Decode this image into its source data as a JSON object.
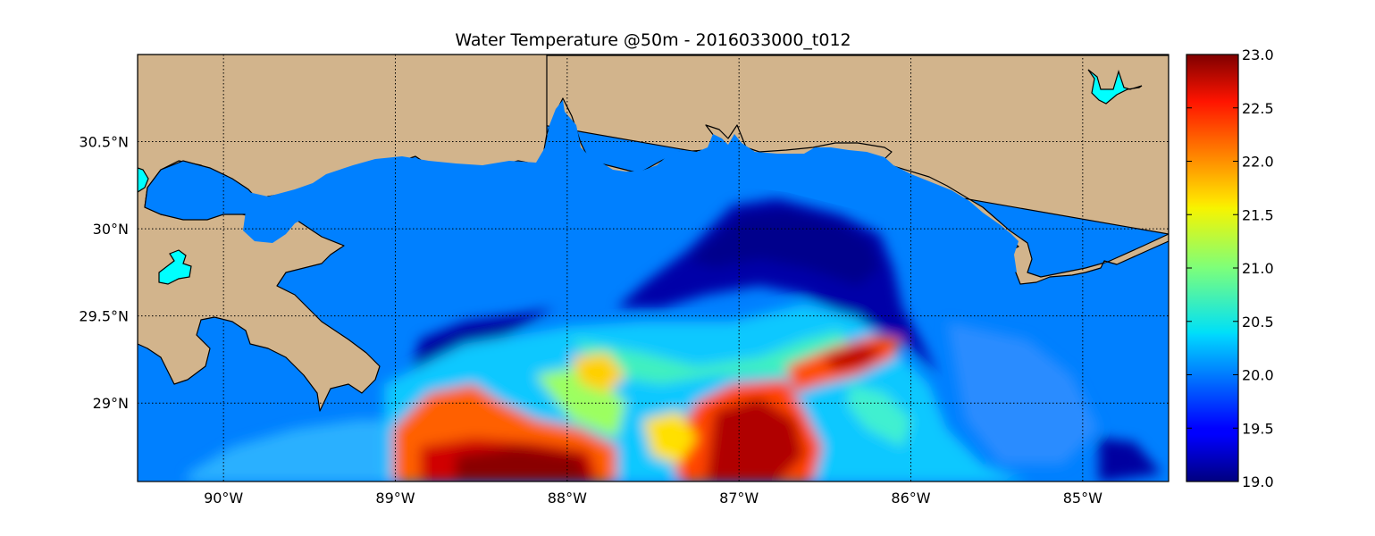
{
  "title": "Water Temperature @50m - 2016033000_t012",
  "map": {
    "lon_range": [
      -90.5,
      -84.5
    ],
    "lat_range": [
      28.55,
      31.0
    ],
    "lon_ticks": [
      {
        "value": -90,
        "label": "90°W"
      },
      {
        "value": -89,
        "label": "89°W"
      },
      {
        "value": -88,
        "label": "88°W"
      },
      {
        "value": -87,
        "label": "87°W"
      },
      {
        "value": -86,
        "label": "86°W"
      },
      {
        "value": -85,
        "label": "85°W"
      }
    ],
    "lat_ticks": [
      {
        "value": 30.5,
        "label": "30.5°N"
      },
      {
        "value": 30.0,
        "label": "30°N"
      },
      {
        "value": 29.5,
        "label": "29.5°N"
      },
      {
        "value": 29.0,
        "label": "29°N"
      }
    ],
    "grid": true,
    "land_color": "#d2b48c",
    "lake_color": "#00ffff",
    "fill_value_color": "#0080ff"
  },
  "colorbar": {
    "min": 19.0,
    "max": 23.0,
    "colormap": "jet",
    "ticks": [
      "19.0",
      "19.5",
      "20.0",
      "20.5",
      "21.0",
      "21.5",
      "22.0",
      "22.5",
      "23.0"
    ]
  }
}
